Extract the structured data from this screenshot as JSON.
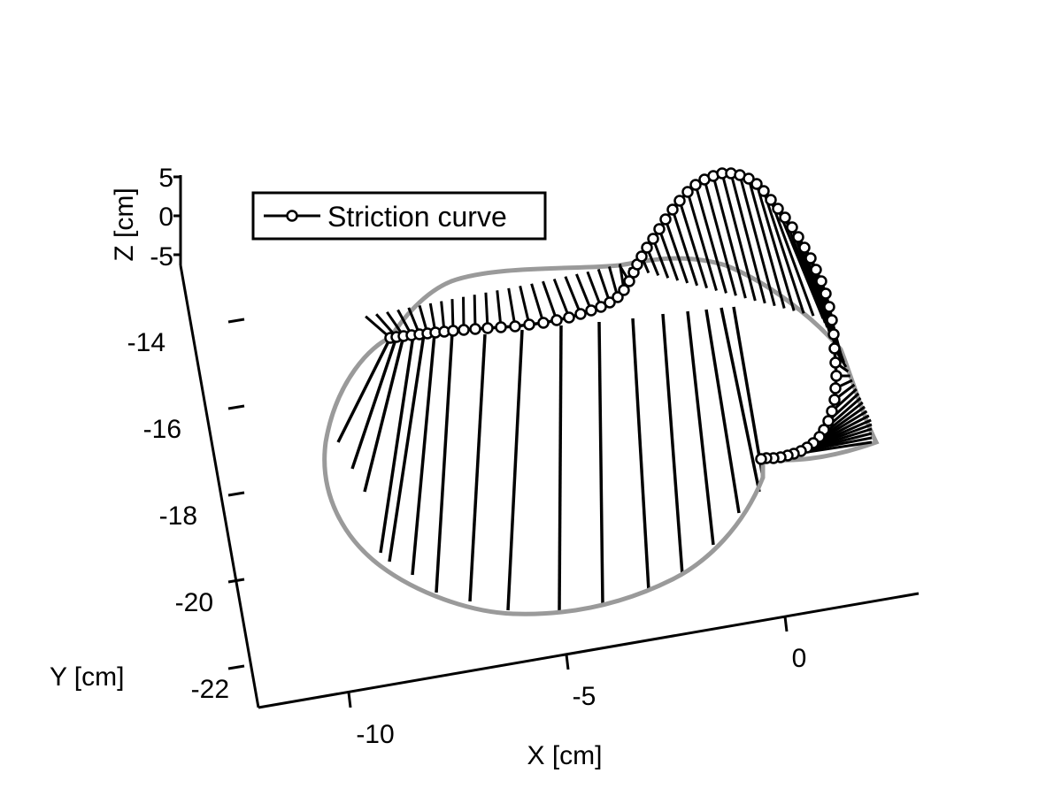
{
  "chart_data": {
    "type": "surface-3d",
    "xlabel": "X [cm]",
    "ylabel": "Y [cm]",
    "zlabel": "Z [cm]",
    "x_ticks": [
      "-10",
      "-5",
      "0"
    ],
    "y_ticks": [
      "-14",
      "-16",
      "-18",
      "-20",
      "-22"
    ],
    "z_ticks": [
      "5",
      "0",
      "-5"
    ],
    "legend": {
      "placement": "top-left",
      "entries": [
        "Striction curve"
      ]
    },
    "grid": false,
    "colors": {
      "ruling": "#000000",
      "boundary": "#9a9a9a",
      "striction": "#000000"
    },
    "striction_curve": {
      "x": [
        -9.0,
        -8.8,
        -8.5,
        -8.2,
        -7.8,
        -7.3,
        -6.7,
        -6.0,
        -5.2,
        -4.3,
        -3.4,
        -2.6,
        -1.9,
        -1.4,
        -1.1,
        -0.9,
        -0.8,
        -0.7,
        -0.6
      ],
      "y": [
        -14.0,
        -14.0,
        -14.0,
        -13.9,
        -13.9,
        -13.8,
        -13.8,
        -13.7,
        -13.7,
        -13.6,
        -13.6,
        -13.5,
        -13.5,
        -13.4,
        -13.6,
        -14.2,
        -15.0,
        -15.8,
        -16.4
      ],
      "z": [
        0.0,
        0.0,
        0.0,
        0.0,
        0.0,
        0.0,
        0.0,
        0.0,
        0.0,
        0.0,
        0.0,
        0.0,
        0.0,
        0.0,
        0.0,
        0.0,
        0.0,
        0.0,
        0.0
      ]
    }
  }
}
